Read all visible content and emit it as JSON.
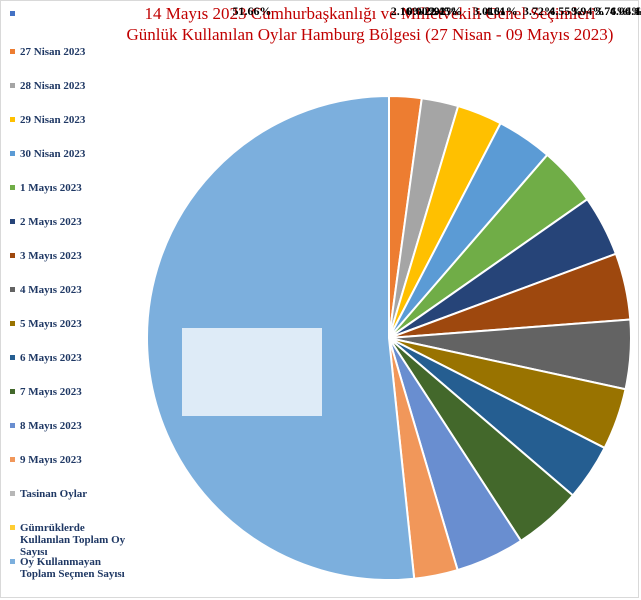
{
  "chart_data": {
    "type": "pie",
    "title": "14 Mayıs 2023 Cumhurbaşkanlığı ve Milletvekili Genel Seçimleri Günlük Kullanılan Oylar Hamburg Bölgesi (27 Nisan - 09 Mayıs 2023)",
    "legend_position": "left",
    "slices": [
      {
        "label": "",
        "value": 0,
        "percent": "",
        "color": "#4472c4"
      },
      {
        "label": "27 Nisan 2023",
        "value": 1877,
        "percent": "2.16%",
        "color": "#ed7d31"
      },
      {
        "label": "28 Nisan 2023",
        "value": 2125,
        "percent": "2.45%",
        "color": "#a5a5a5"
      },
      {
        "label": "29 Nisan 2023",
        "value": 2615,
        "percent": "3.01%",
        "color": "#ffc000"
      },
      {
        "label": "30 Nisan 2023",
        "value": 3226,
        "percent": "3.72%",
        "color": "#5b9bd5"
      },
      {
        "label": "1 Mayıs 2023",
        "value": 3417,
        "percent": "3.94%",
        "color": "#70ad47"
      },
      {
        "label": "2 Mayıs 2023",
        "value": 3527,
        "percent": "4.06%",
        "color": "#264478"
      },
      {
        "label": "3 Mayıs 2023",
        "value": 3852,
        "percent": "4.44%",
        "color": "#9e480e"
      },
      {
        "label": "4 Mayıs 2023",
        "value": 4000,
        "percent": "4.61%",
        "color": "#636363"
      },
      {
        "label": "5 Mayıs 2023",
        "value": 3565,
        "percent": "4.11%",
        "color": "#997300"
      },
      {
        "label": "6 Mayıs 2023",
        "value": 3264,
        "percent": "3.76%",
        "color": "#255e91"
      },
      {
        "label": "7 Mayıs 2023",
        "value": 3950,
        "percent": "4.55%",
        "color": "#43682b"
      },
      {
        "label": "8 Mayıs 2023",
        "value": 3997,
        "percent": "4.61%",
        "color": "#698ed0"
      },
      {
        "label": "9 Mayıs 2023",
        "value": 2530,
        "percent": "2.92%",
        "color": "#f1975a"
      },
      {
        "label": "Tasinan Oylar",
        "value": 0,
        "percent": "0.00%",
        "color": "#b7b7b7"
      },
      {
        "label": "Gümrüklerde Kullanılan Toplam Oy Sayısı",
        "value": 0,
        "percent": "",
        "color": "#ffcd33"
      },
      {
        "label": "Oy Kullanmayan Toplam Seçmen Sayısı",
        "value": 44825,
        "percent": "51.66%",
        "color": "#7cafdd"
      }
    ]
  }
}
